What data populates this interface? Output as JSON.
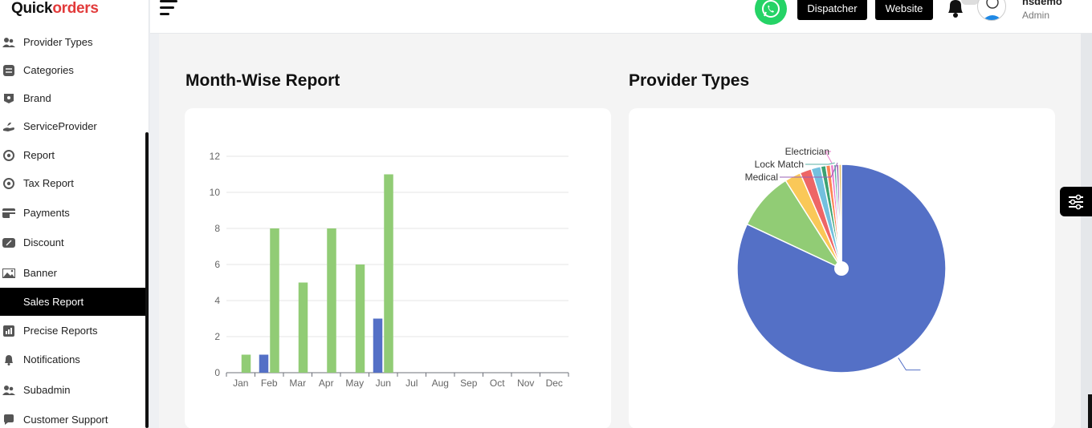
{
  "brand": {
    "logo_quick": "Quick",
    "logo_orders": "orders"
  },
  "sidebar": {
    "items": [
      {
        "label": "Provider Types",
        "icon": "users-icon"
      },
      {
        "label": "Categories",
        "icon": "list-icon"
      },
      {
        "label": "Brand",
        "icon": "tag-icon"
      },
      {
        "label": "ServiceProvider",
        "icon": "hand-service-icon"
      },
      {
        "label": "Report",
        "icon": "report-icon"
      },
      {
        "label": "Tax Report",
        "icon": "report-icon"
      },
      {
        "label": "Payments",
        "icon": "credit-card-icon"
      },
      {
        "label": "Discount",
        "icon": "discount-icon"
      },
      {
        "label": "Banner",
        "icon": "image-icon"
      },
      {
        "label": "Sales Report",
        "icon": "chart-icon",
        "active": true
      },
      {
        "label": "Precise Reports",
        "icon": "chart-icon"
      },
      {
        "label": "Notifications",
        "icon": "bell-icon"
      },
      {
        "label": "Subadmin",
        "icon": "users-icon"
      },
      {
        "label": "Customer Support",
        "icon": "chat-icon"
      }
    ]
  },
  "header": {
    "dispatcher_label": "Dispatcher",
    "website_label": "Website",
    "user_name": "nsdemo",
    "user_role": "Admin",
    "whatsapp_color": "#25d366"
  },
  "month_report": {
    "title": "Month-Wise Report",
    "chart_data": {
      "type": "bar",
      "categories": [
        "Jan",
        "Feb",
        "Mar",
        "Apr",
        "May",
        "Jun",
        "Jul",
        "Aug",
        "Sep",
        "Oct",
        "Nov",
        "Dec"
      ],
      "series": [
        {
          "color": "#5470c6",
          "values": [
            0,
            1,
            0,
            0,
            0,
            3,
            0,
            0,
            0,
            0,
            0,
            0
          ]
        },
        {
          "color": "#91cc75",
          "values": [
            1,
            8,
            5,
            8,
            6,
            11,
            0,
            0,
            0,
            0,
            0,
            0
          ]
        }
      ],
      "yticks": [
        0,
        2,
        4,
        6,
        8,
        10,
        12
      ],
      "ylim": [
        0,
        12
      ],
      "grid": true
    }
  },
  "provider_types": {
    "title": "Provider Types",
    "chart_data": {
      "type": "pie",
      "slices": [
        {
          "label": "",
          "value": 82.0,
          "color": "#5470c6"
        },
        {
          "label": "",
          "value": 9.0,
          "color": "#91cc75"
        },
        {
          "label": "",
          "value": 2.5,
          "color": "#fac858"
        },
        {
          "label": "",
          "value": 1.8,
          "color": "#ee6666"
        },
        {
          "label": "",
          "value": 1.5,
          "color": "#73c0de"
        },
        {
          "label": "",
          "value": 0.8,
          "color": "#3ba272"
        },
        {
          "label": "",
          "value": 0.7,
          "color": "#fc8452"
        },
        {
          "label": "Electrician",
          "value": 0.5,
          "color": "#ea7ccc"
        },
        {
          "label": "Lock Match",
          "value": 0.4,
          "color": "#5ab1a6"
        },
        {
          "label": "Medical",
          "value": 0.4,
          "color": "#9a60b4"
        },
        {
          "label": "",
          "value": 0.4,
          "color": "#e6c06a"
        }
      ]
    }
  }
}
